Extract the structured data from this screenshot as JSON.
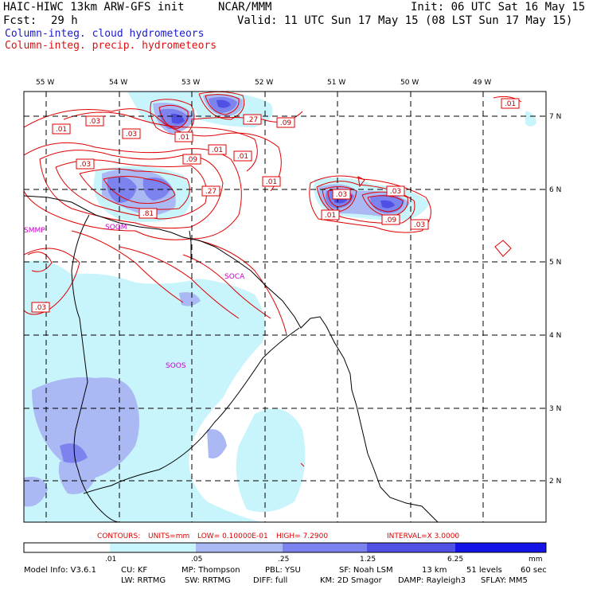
{
  "header": {
    "model": "HAIC-HIWC 13km ARW-GFS init",
    "org": "NCAR/MMM",
    "init": "Init: 06 UTC Sat 16 May 15",
    "fcst_label": "Fcst:",
    "fcst_value": "29 h",
    "valid": "Valid: 11 UTC Sun 17 May 15 (08 LST Sun 17 May 15)",
    "field_cloud": "Column-integ. cloud hydrometeors",
    "field_precip": "Column-integ. precip. hydrometeors"
  },
  "map": {
    "lon_labels": [
      "55 W",
      "54 W",
      "53 W",
      "52 W",
      "51 W",
      "50 W",
      "49 W"
    ],
    "lat_labels": [
      "7 N",
      "6 N",
      "5 N",
      "4 N",
      "3 N",
      "2 N"
    ],
    "station_labels": [
      "SMMP",
      "SOGM",
      "SOCA",
      "SOOS"
    ],
    "contour_labels": [
      ".01",
      ".03",
      ".03",
      ".03",
      ".01",
      ".01",
      ".09",
      ".01",
      ".03",
      ".27",
      ".09",
      ".27",
      ".81",
      ".01",
      ".03",
      ".01",
      ".09",
      ".03",
      ".01",
      ".03"
    ],
    "colors": {
      "cloud": "#0000cc",
      "precip": "#dd0000",
      "station": "#cc00cc"
    }
  },
  "contour_info": {
    "label": "CONTOURS:",
    "units": "UNITS=mm",
    "low": "LOW= 0.10000E-01",
    "high": "HIGH=  7.2900",
    "interval": "INTERVAL=X  3.0000"
  },
  "colorbar": {
    "ticks": [
      ".01",
      ".05",
      ".25",
      "1.25",
      "6.25"
    ],
    "unit": "mm",
    "colors": [
      "#ffffff",
      "#c8f4fc",
      "#aab8f4",
      "#7c82ee",
      "#5050e4",
      "#1414e8"
    ]
  },
  "model_info": {
    "line1": [
      "Model Info: V3.6.1",
      "CU: KF",
      "MP: Thompson",
      "PBL: YSU",
      "SF: Noah LSM",
      "13 km",
      "51 levels",
      "60 sec"
    ],
    "line2": [
      "LW: RRTMG",
      "SW: RRTMG",
      "DIFF: full",
      "KM: 2D Smagor",
      "DAMP: Rayleigh3",
      "SFLAY: MM5"
    ]
  }
}
